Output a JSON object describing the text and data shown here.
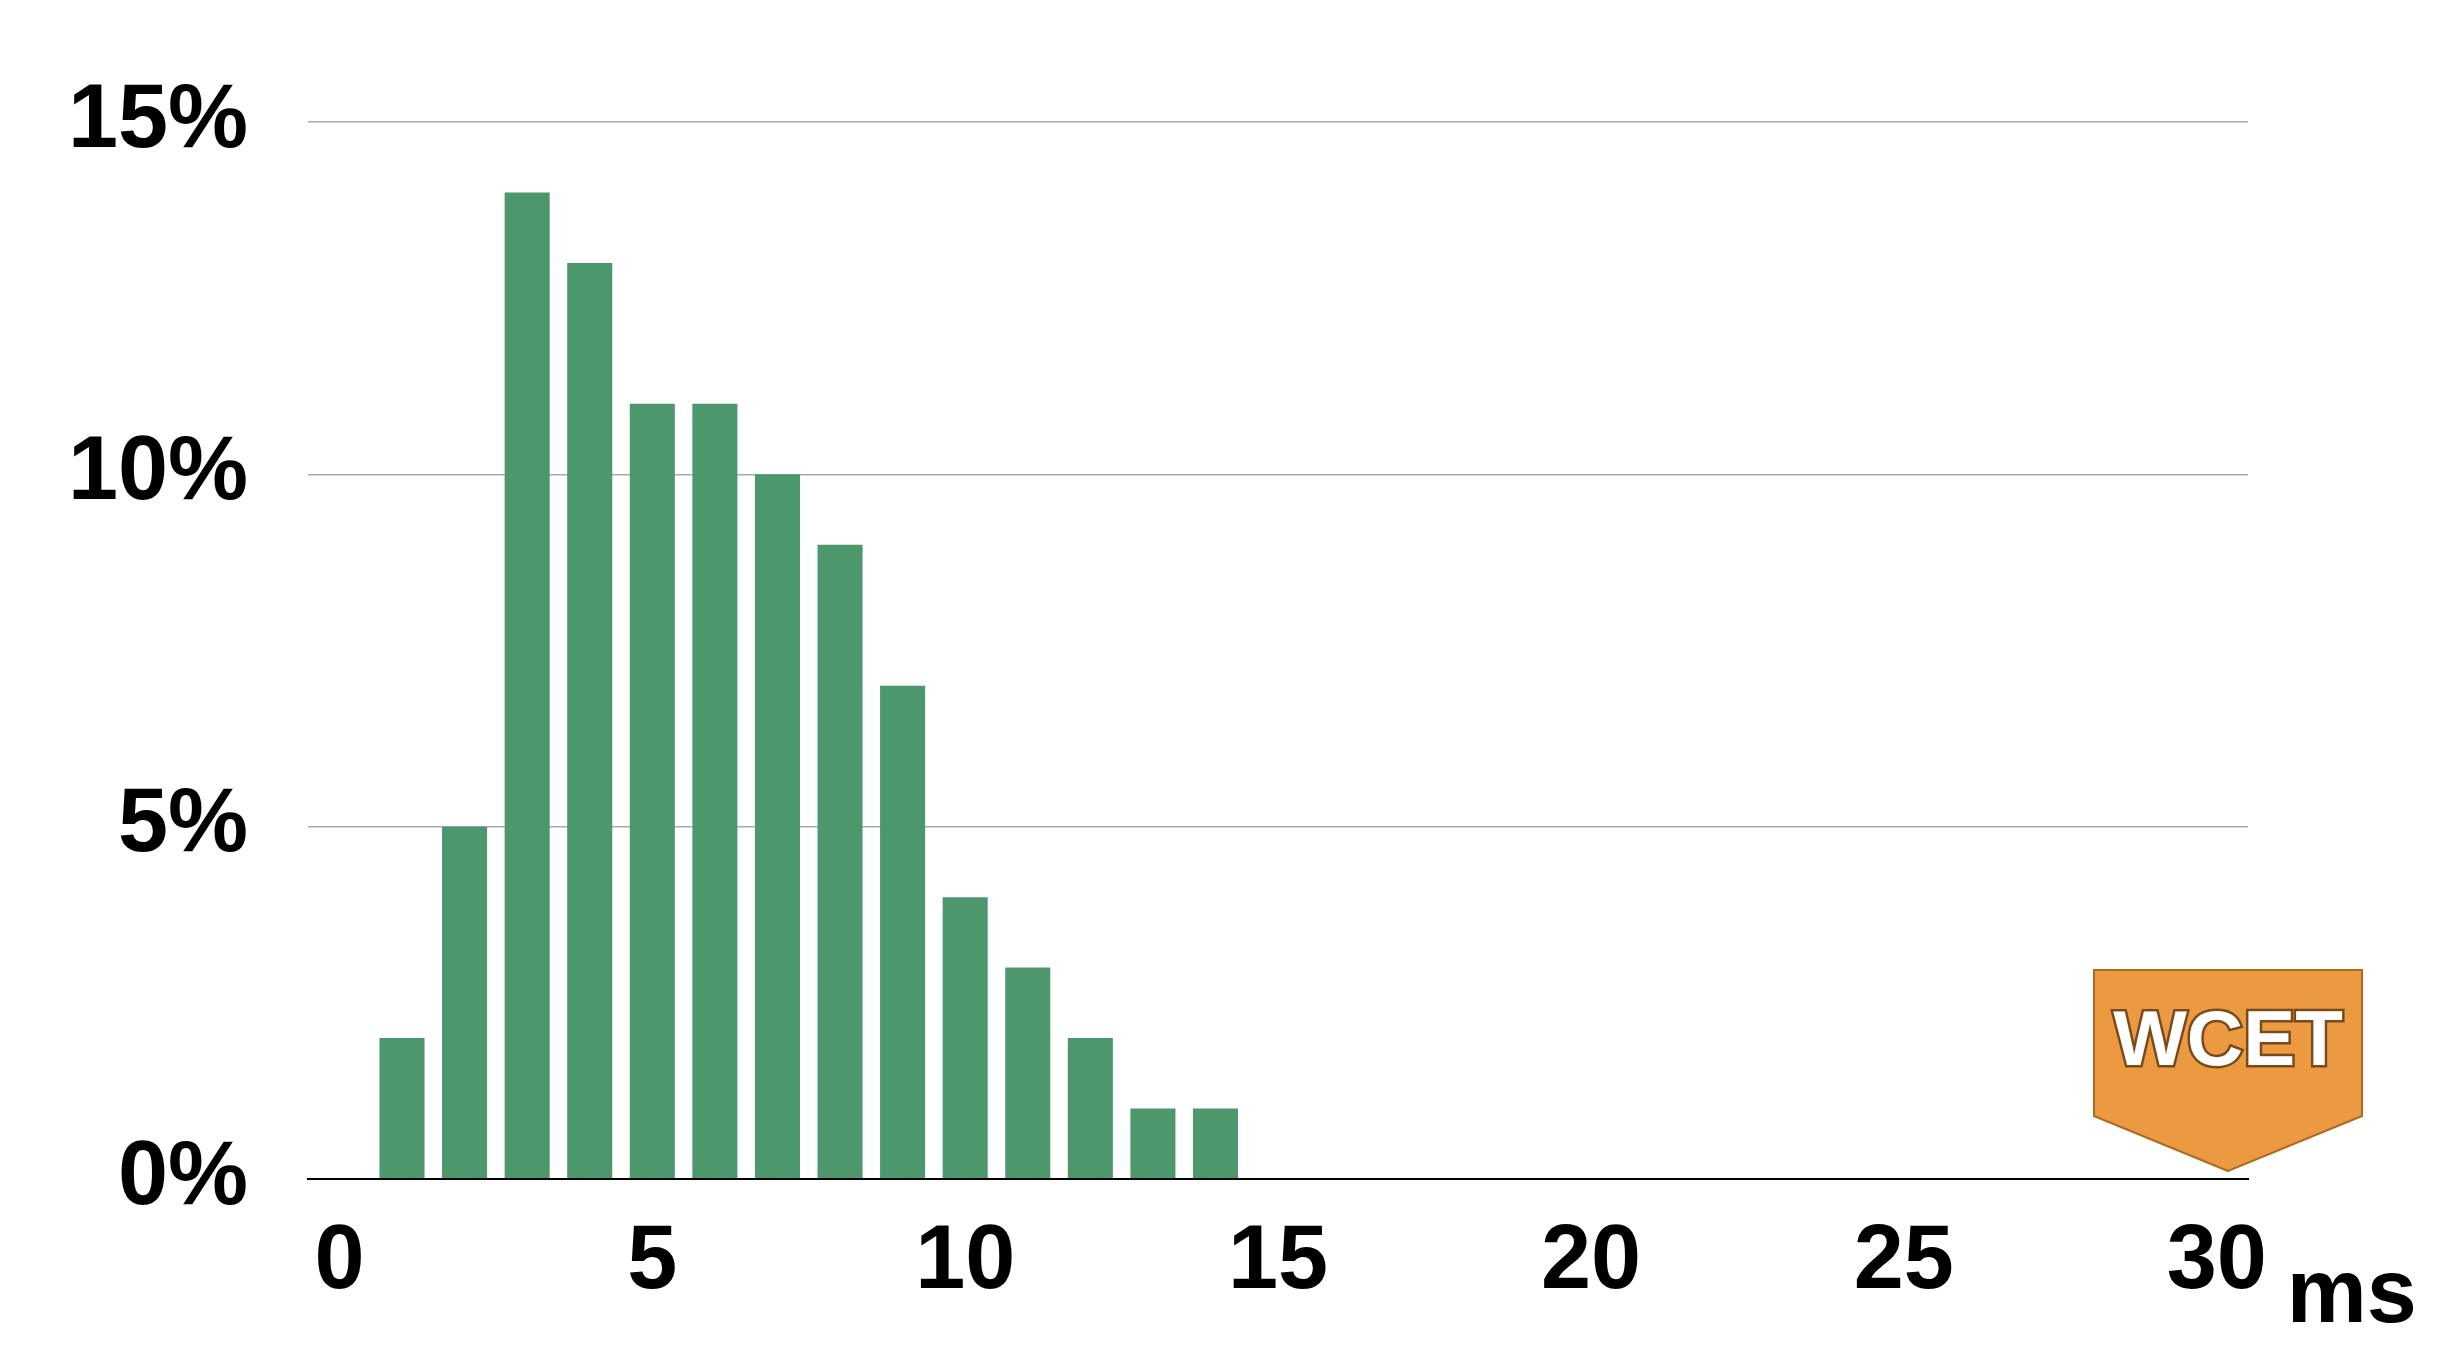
{
  "chart_data": {
    "type": "bar",
    "xlabel": "ms",
    "x": [
      1,
      2,
      3,
      4,
      5,
      6,
      7,
      8,
      9,
      10,
      11,
      12,
      13,
      14
    ],
    "values": [
      2,
      5,
      14,
      13,
      11,
      11,
      10,
      9,
      7,
      4,
      3,
      2,
      1,
      1
    ],
    "color": "#4d976d",
    "xlim": [
      -0.5,
      30.5
    ],
    "xticks": [
      0,
      5,
      10,
      15,
      20,
      25,
      30
    ],
    "ylim": [
      0,
      15
    ],
    "yticks": [
      {
        "value": 0,
        "label": "0%"
      },
      {
        "value": 5,
        "label": "5%"
      },
      {
        "value": 10,
        "label": "10%"
      },
      {
        "value": 15,
        "label": "15%"
      }
    ],
    "grid": "y",
    "legend": false,
    "annotations": [
      "WCET"
    ]
  }
}
